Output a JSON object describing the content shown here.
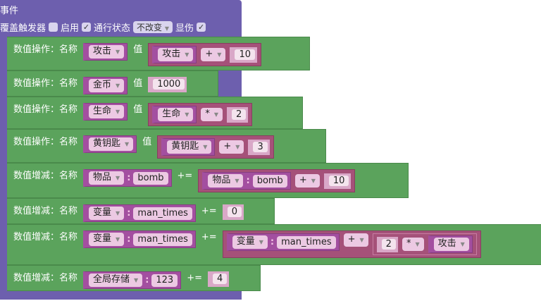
{
  "event": {
    "title": "事件",
    "override_label": "覆盖触发器",
    "override_checked": false,
    "enable_label": "启用",
    "enable_checked": true,
    "pass_label": "通行状态",
    "pass_value": "不改变",
    "show_damage_label": "显伤",
    "show_damage_checked": true
  },
  "rows": [
    {
      "label": "数值操作：名称",
      "name": "攻击",
      "op": "值",
      "expr": {
        "a": "攻击",
        "op": "+",
        "b": "10"
      }
    },
    {
      "label": "数值操作：名称",
      "name": "金币",
      "op": "值",
      "value": "1000"
    },
    {
      "label": "数值操作：名称",
      "name": "生命",
      "op": "值",
      "expr": {
        "a": "生命",
        "op": "*",
        "b": "2"
      }
    },
    {
      "label": "数值操作：名称",
      "name": "黄钥匙",
      "op": "值",
      "expr": {
        "a": "黄钥匙",
        "op": "+",
        "b": "3"
      }
    },
    {
      "label": "数值增减：名称",
      "type": "物品",
      "key": "bomb",
      "op": "+=",
      "expr": {
        "type": "物品",
        "key": "bomb",
        "op": "+",
        "b": "10"
      }
    },
    {
      "label": "数值增减：名称",
      "type": "变量",
      "key": "man_times",
      "op": "+=",
      "value": "0"
    },
    {
      "label": "数值增减：名称",
      "type": "变量",
      "key": "man_times",
      "op": "+=",
      "expr": {
        "type": "变量",
        "key": "man_times",
        "op": "+",
        "inner": {
          "a": "2",
          "op": "*",
          "b": "攻击"
        }
      }
    },
    {
      "label": "数值增减：名称",
      "type": "全局存储",
      "key": "123",
      "op": "+=",
      "value": "4"
    }
  ],
  "colors": {
    "event": "#6d5fae",
    "action": "#5ba35c",
    "expression": "#a55179",
    "variable": "#a34fa0"
  }
}
